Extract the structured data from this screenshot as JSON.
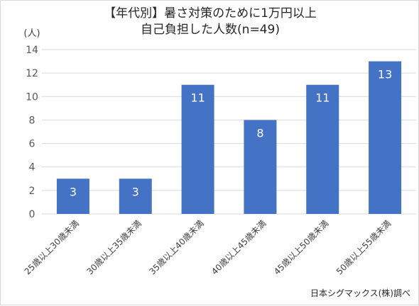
{
  "chart_data": {
    "type": "bar",
    "title_line1": "【年代別】暑さ対策のために1万円以上",
    "title_line2": "自己負担した人数(n=49)",
    "y_unit": "(人)",
    "categories": [
      "25歳以上30歳未満",
      "30歳以上35歳未満",
      "35歳以上40歳未満",
      "40歳以上45歳未満",
      "45歳以上50歳未満",
      "50歳以上55歳未満"
    ],
    "values": [
      3,
      3,
      11,
      8,
      11,
      13
    ],
    "ylim": [
      0,
      14
    ],
    "y_ticks": [
      0,
      2,
      4,
      6,
      8,
      10,
      12,
      14
    ],
    "grid": true,
    "data_labels": true,
    "bar_color": "#4472C4",
    "source": "日本シグマックス(株)調べ"
  }
}
